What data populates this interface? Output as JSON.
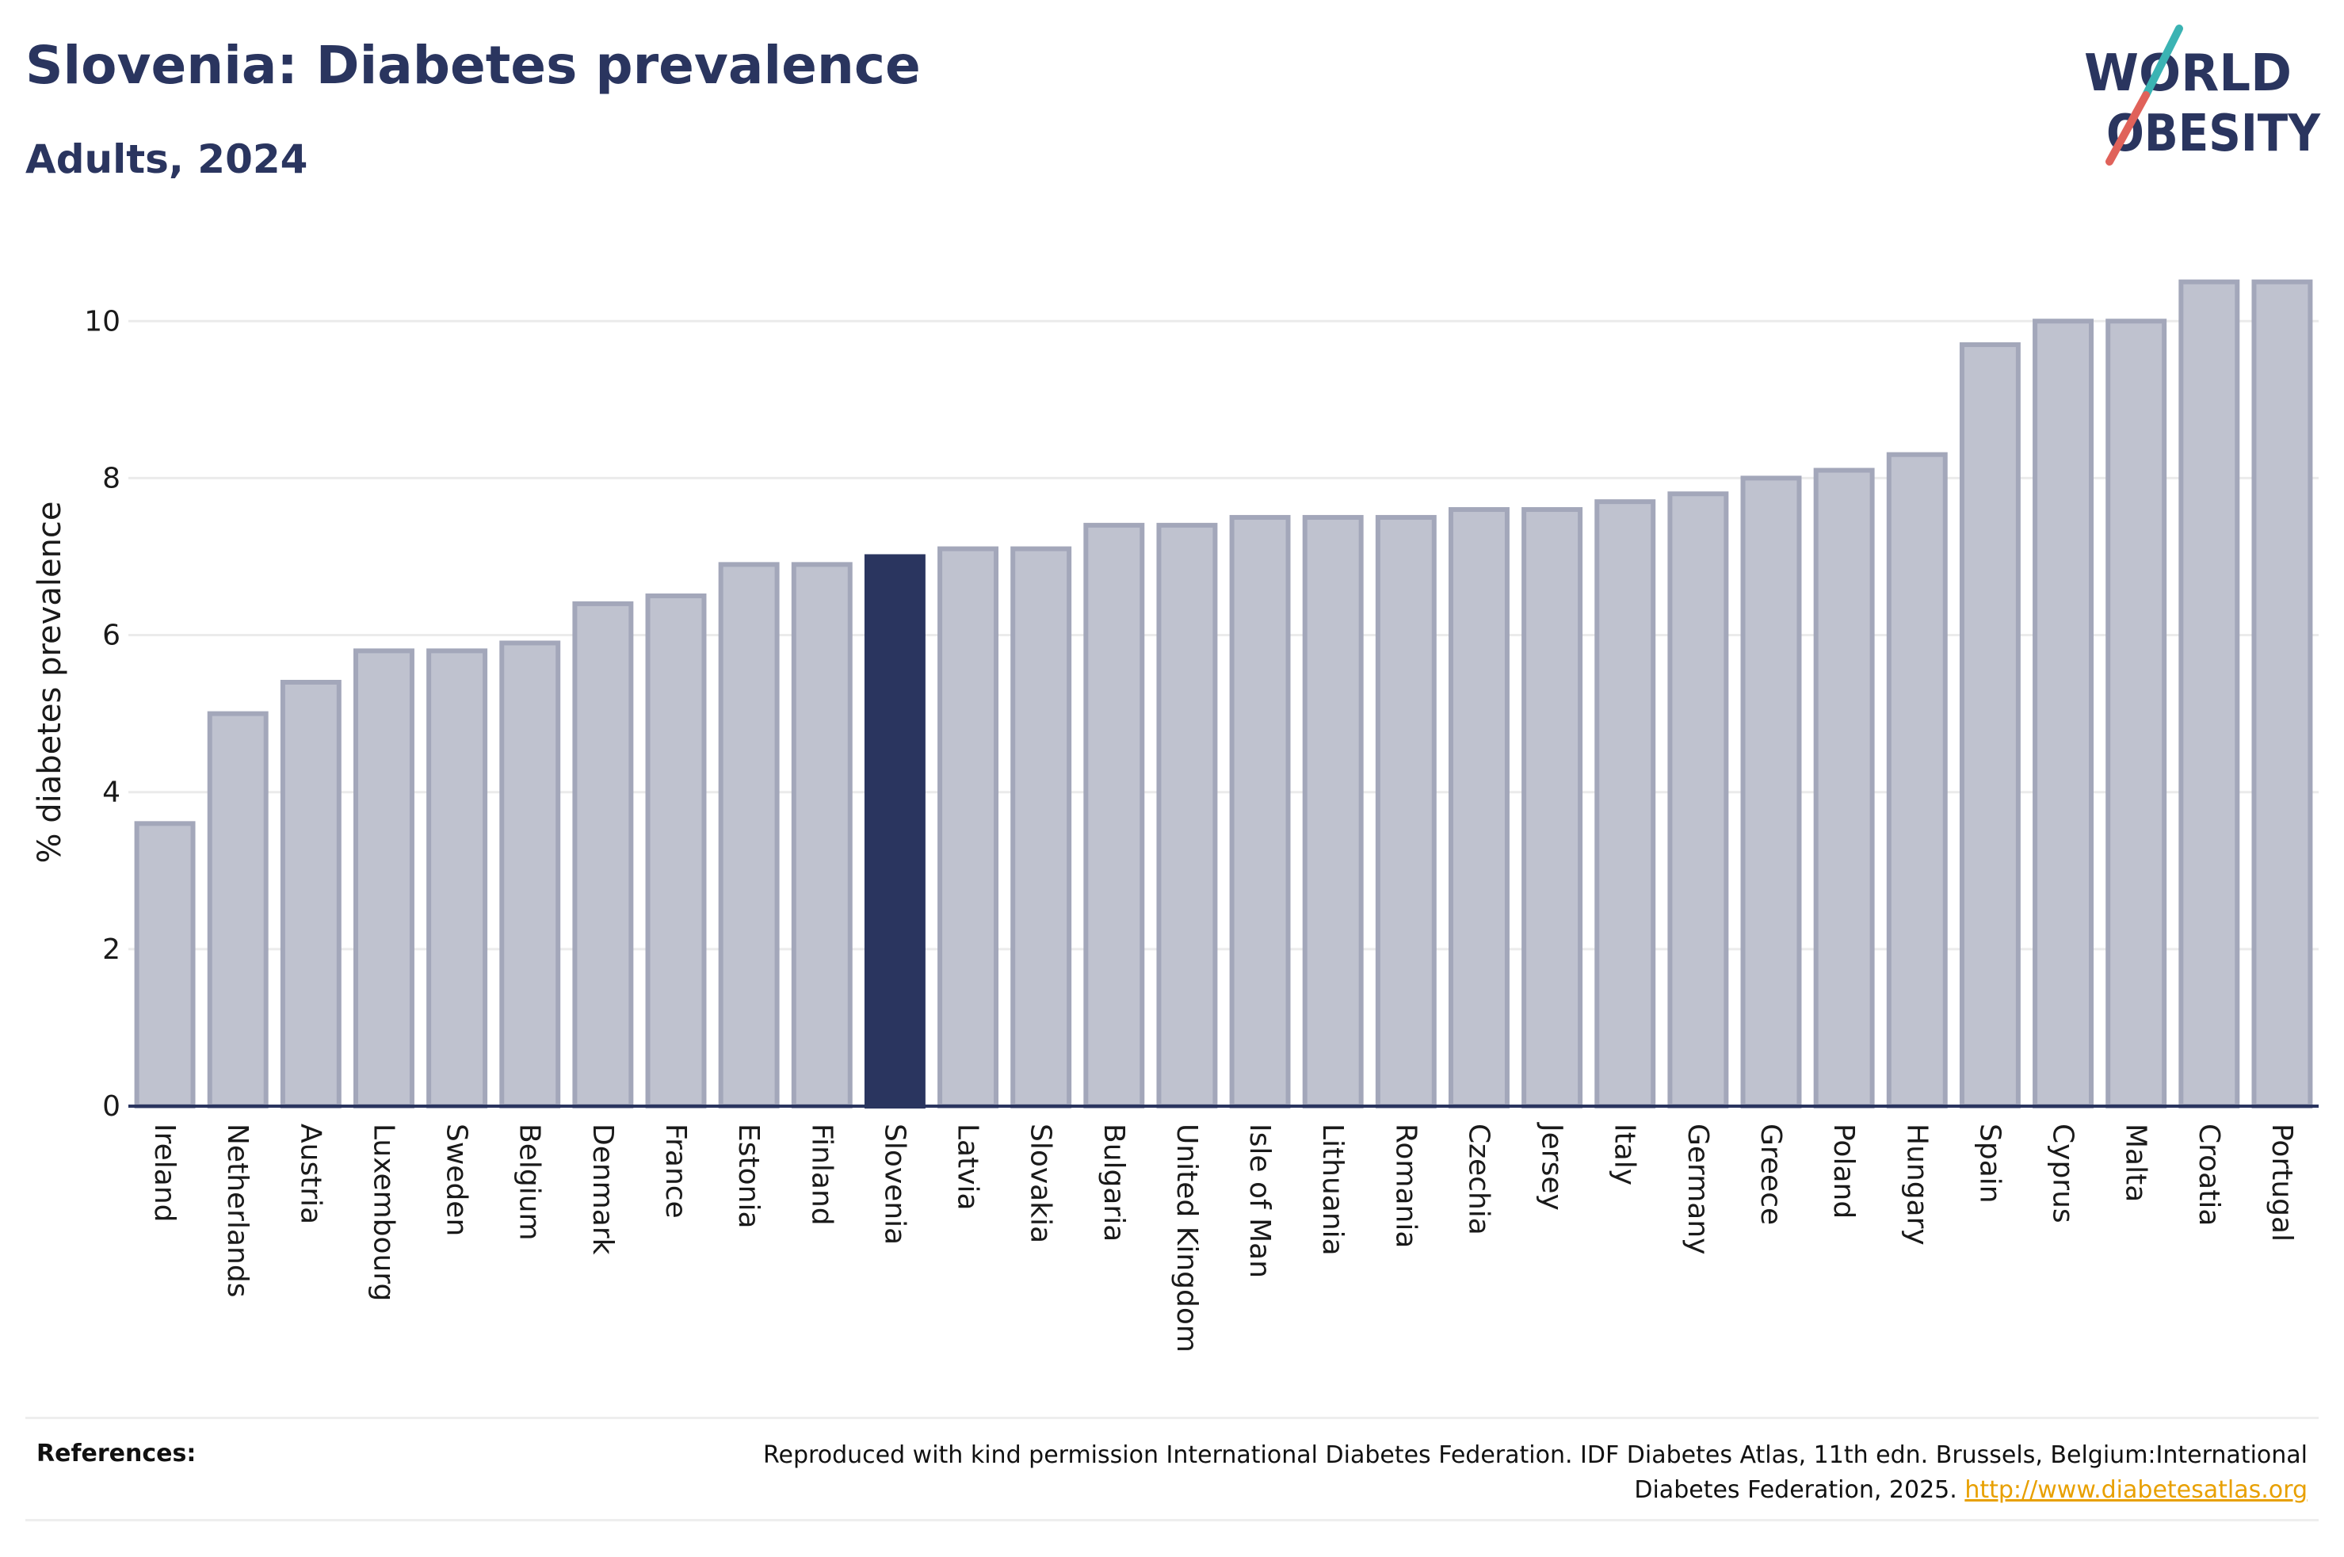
{
  "header": {
    "title": "Slovenia: Diabetes prevalence",
    "subtitle": "Adults, 2024"
  },
  "logo": {
    "line1": "WORLD",
    "line2": "OBESITY",
    "colors": {
      "text": "#2a355f",
      "slash_teal": "#3bb3b3",
      "slash_red": "#e0625a"
    }
  },
  "references": {
    "label": "References:",
    "text_line1": "Reproduced with kind permission International Diabetes Federation. IDF Diabetes Atlas, 11th edn. Brussels, Belgium:International",
    "text_line2": "Diabetes Federation, 2025.",
    "link": "http://www.diabetesatlas.org"
  },
  "colors": {
    "highlight": "#2a355f",
    "bar_fill": "#bfc2cf",
    "bar_edge": "#a3a7ba",
    "grid": "#ebebeb",
    "axis_text": "#1a1a1a"
  },
  "chart_data": {
    "type": "bar",
    "title": "Slovenia: Diabetes prevalence",
    "subtitle": "Adults, 2024",
    "xlabel": "",
    "ylabel": "% diabetes prevalence",
    "ylim": [
      0,
      10.8
    ],
    "yticks": [
      0,
      2,
      4,
      6,
      8,
      10
    ],
    "grid": true,
    "highlight_category": "Slovenia",
    "categories": [
      "Ireland",
      "Netherlands",
      "Austria",
      "Luxembourg",
      "Sweden",
      "Belgium",
      "Denmark",
      "France",
      "Estonia",
      "Finland",
      "Slovenia",
      "Latvia",
      "Slovakia",
      "Bulgaria",
      "United Kingdom",
      "Isle of Man",
      "Lithuania",
      "Romania",
      "Czechia",
      "Jersey",
      "Italy",
      "Germany",
      "Greece",
      "Poland",
      "Hungary",
      "Spain",
      "Cyprus",
      "Malta",
      "Croatia",
      "Portugal"
    ],
    "values": [
      3.6,
      5.0,
      5.4,
      5.8,
      5.8,
      5.9,
      6.4,
      6.5,
      6.9,
      6.9,
      7.0,
      7.1,
      7.1,
      7.4,
      7.4,
      7.5,
      7.5,
      7.5,
      7.6,
      7.6,
      7.7,
      7.8,
      8.0,
      8.1,
      8.3,
      9.7,
      10.0,
      10.0,
      10.5,
      10.5
    ]
  }
}
